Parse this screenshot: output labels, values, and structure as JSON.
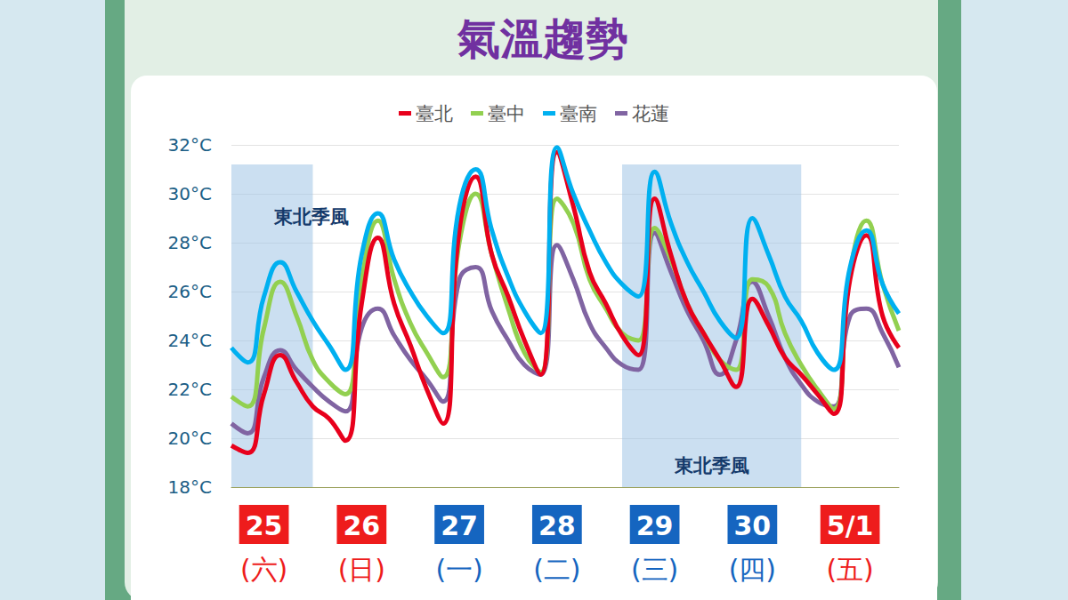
{
  "chart_data": {
    "type": "line",
    "title": "氣溫趨勢",
    "categories": [
      null,
      null,
      "25\n(六)",
      null,
      null,
      null,
      null,
      null,
      "26\n(日)",
      null,
      null,
      null,
      null,
      null,
      "27\n(一)",
      null,
      null,
      null,
      null,
      null,
      "28\n(二)",
      null,
      null,
      null,
      null,
      null,
      "29\n(三)",
      null,
      null,
      null,
      null,
      null,
      "30\n(四)",
      null,
      null,
      null,
      null,
      null,
      "5/1\n(五)",
      null,
      null,
      null
    ],
    "date_colors": [
      null,
      null,
      "#ee1c1c",
      null,
      null,
      null,
      null,
      null,
      "#ee1c1c",
      null,
      null,
      null,
      null,
      null,
      "#1565c0",
      null,
      null,
      null,
      null,
      null,
      "#1565c0",
      null,
      null,
      null,
      null,
      null,
      "#1565c0",
      null,
      null,
      null,
      null,
      null,
      "#1565c0",
      null,
      null,
      null,
      null,
      null,
      "#ee1c1c",
      null,
      null,
      null
    ],
    "series": [
      {
        "name": "臺北",
        "color": "#e8001c",
        "values": [
          19.7,
          19.4,
          21.8,
          23.4,
          22.3,
          21.3,
          20.8,
          19.9,
          25.5,
          28.2,
          25.5,
          23.8,
          22.0,
          20.6,
          28.5,
          30.7,
          27.5,
          25.8,
          24.0,
          22.6,
          31.7,
          29.5,
          26.8,
          25.5,
          24.2,
          23.4,
          29.8,
          27.5,
          25.5,
          24.3,
          23.2,
          22.1,
          25.7,
          24.6,
          23.3,
          22.6,
          21.8,
          21.0,
          26.5,
          28.3,
          25.0,
          23.7
        ]
      },
      {
        "name": "臺中",
        "color": "#92d050",
        "values": [
          21.7,
          21.3,
          24.5,
          26.4,
          25.0,
          23.2,
          22.3,
          21.8,
          26.5,
          28.9,
          26.5,
          24.7,
          23.5,
          22.5,
          28.0,
          30.0,
          27.5,
          25.3,
          23.5,
          22.7,
          29.8,
          28.8,
          26.5,
          25.3,
          24.3,
          24.0,
          28.6,
          27.3,
          25.5,
          24.3,
          23.2,
          22.8,
          26.5,
          26.2,
          24.3,
          23.0,
          22.0,
          21.2,
          26.8,
          28.9,
          26.3,
          24.4
        ]
      },
      {
        "name": "臺南",
        "color": "#00b0f0",
        "values": [
          23.7,
          23.1,
          25.8,
          27.2,
          26.0,
          24.8,
          23.8,
          22.8,
          27.5,
          29.2,
          27.3,
          26.0,
          25.0,
          24.3,
          29.5,
          31.0,
          28.5,
          26.6,
          25.2,
          24.3,
          31.9,
          30.0,
          28.5,
          27.2,
          26.3,
          25.8,
          30.9,
          28.8,
          27.2,
          26.0,
          24.8,
          24.1,
          29.0,
          27.5,
          25.8,
          24.8,
          23.5,
          22.8,
          27.0,
          28.5,
          26.3,
          25.1
        ]
      },
      {
        "name": "花蓮",
        "color": "#8064a2",
        "values": [
          20.6,
          20.2,
          22.5,
          23.6,
          22.8,
          22.1,
          21.5,
          21.1,
          24.5,
          25.3,
          24.2,
          23.2,
          22.4,
          21.5,
          26.5,
          27.0,
          25.2,
          24.0,
          23.0,
          22.6,
          27.9,
          26.5,
          24.7,
          23.7,
          23.0,
          22.8,
          28.4,
          26.8,
          25.2,
          24.0,
          22.6,
          24.0,
          26.4,
          25.0,
          23.3,
          22.2,
          21.5,
          21.3,
          25.0,
          25.3,
          24.3,
          22.9
        ]
      }
    ],
    "ylim": [
      18,
      32
    ],
    "yticks": [
      {
        "value": 18,
        "label": "18°C"
      },
      {
        "value": 20,
        "label": "20°C"
      },
      {
        "value": 22,
        "label": "22°C"
      },
      {
        "value": 24,
        "label": "24°C"
      },
      {
        "value": 26,
        "label": "26°C"
      },
      {
        "value": 28,
        "label": "28°C"
      },
      {
        "value": 30,
        "label": "30°C"
      },
      {
        "value": 32,
        "label": "32°C"
      }
    ],
    "grid": true,
    "legend": "top",
    "annotations": [
      {
        "text": "東北季風",
        "x_range": [
          0,
          5
        ],
        "y_range": [
          18,
          31.2
        ],
        "position": "top"
      },
      {
        "text": "東北季風",
        "x_range": [
          24,
          35
        ],
        "y_range": [
          18,
          31.2
        ],
        "position": "bottom"
      }
    ]
  }
}
